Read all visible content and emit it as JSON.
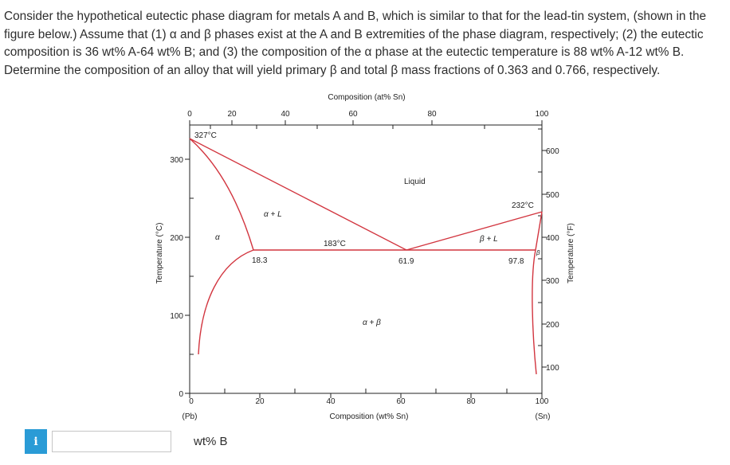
{
  "question": {
    "text": "Consider the hypothetical eutectic phase diagram for metals A and B, which is similar to that for the lead-tin system, (shown in the figure below.) Assume that (1) α and β phases exist at the A and B extremities of the phase diagram, respectively; (2) the eutectic composition is 36 wt% A-64 wt% B; and (3) the composition of the α phase at the eutectic temperature is 88 wt% A-12 wt% B. Determine the composition of an alloy that will yield primary β and total β mass fractions of 0.363 and 0.766, respectively."
  },
  "diagram": {
    "top_axis_title": "Composition (at% Sn)",
    "top_ticks": [
      "0",
      "20",
      "40",
      "60",
      "80",
      "100"
    ],
    "bottom_axis_title": "Composition (wt% Sn)",
    "bottom_ticks": [
      "0",
      "20",
      "40",
      "60",
      "80",
      "100"
    ],
    "bottom_left_end": "(Pb)",
    "bottom_right_end": "(Sn)",
    "left_axis_title": "Temperature (°C)",
    "left_ticks": [
      "0",
      "100",
      "200",
      "300"
    ],
    "right_axis_title": "Temperature (°F)",
    "right_ticks": [
      "100",
      "200",
      "300",
      "400",
      "500",
      "600"
    ],
    "labels": {
      "pb_melt": "327°C",
      "sn_melt": "232°C",
      "eutectic_temp": "183°C",
      "liquid": "Liquid",
      "alpha_plus_l": "α + L",
      "beta_plus_l": "β + L",
      "alpha": "α",
      "beta": "β",
      "alpha_plus_beta": "α + β",
      "c_alpha": "18.3",
      "c_eutectic": "61.9",
      "c_beta": "97.8"
    },
    "line_color": "#d2353f"
  },
  "answer": {
    "info_icon": "i",
    "input_value": "",
    "unit": "wt% B"
  }
}
